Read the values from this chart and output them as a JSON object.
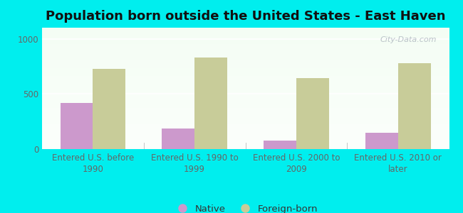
{
  "title": "Population born outside the United States - East Haven",
  "categories": [
    "Entered U.S. before\n1990",
    "Entered U.S. 1990 to\n1999",
    "Entered U.S. 2000 to\n2009",
    "Entered U.S. 2010 or\nlater"
  ],
  "native_values": [
    420,
    185,
    75,
    150
  ],
  "foreign_values": [
    730,
    830,
    645,
    780
  ],
  "native_color": "#cc99cc",
  "foreign_color": "#c8cc99",
  "background_color": "#00eeee",
  "ylim": [
    0,
    1100
  ],
  "yticks": [
    0,
    500,
    1000
  ],
  "bar_width": 0.32,
  "title_fontsize": 13,
  "tick_fontsize": 8.5,
  "legend_fontsize": 9.5,
  "watermark": "City-Data.com"
}
